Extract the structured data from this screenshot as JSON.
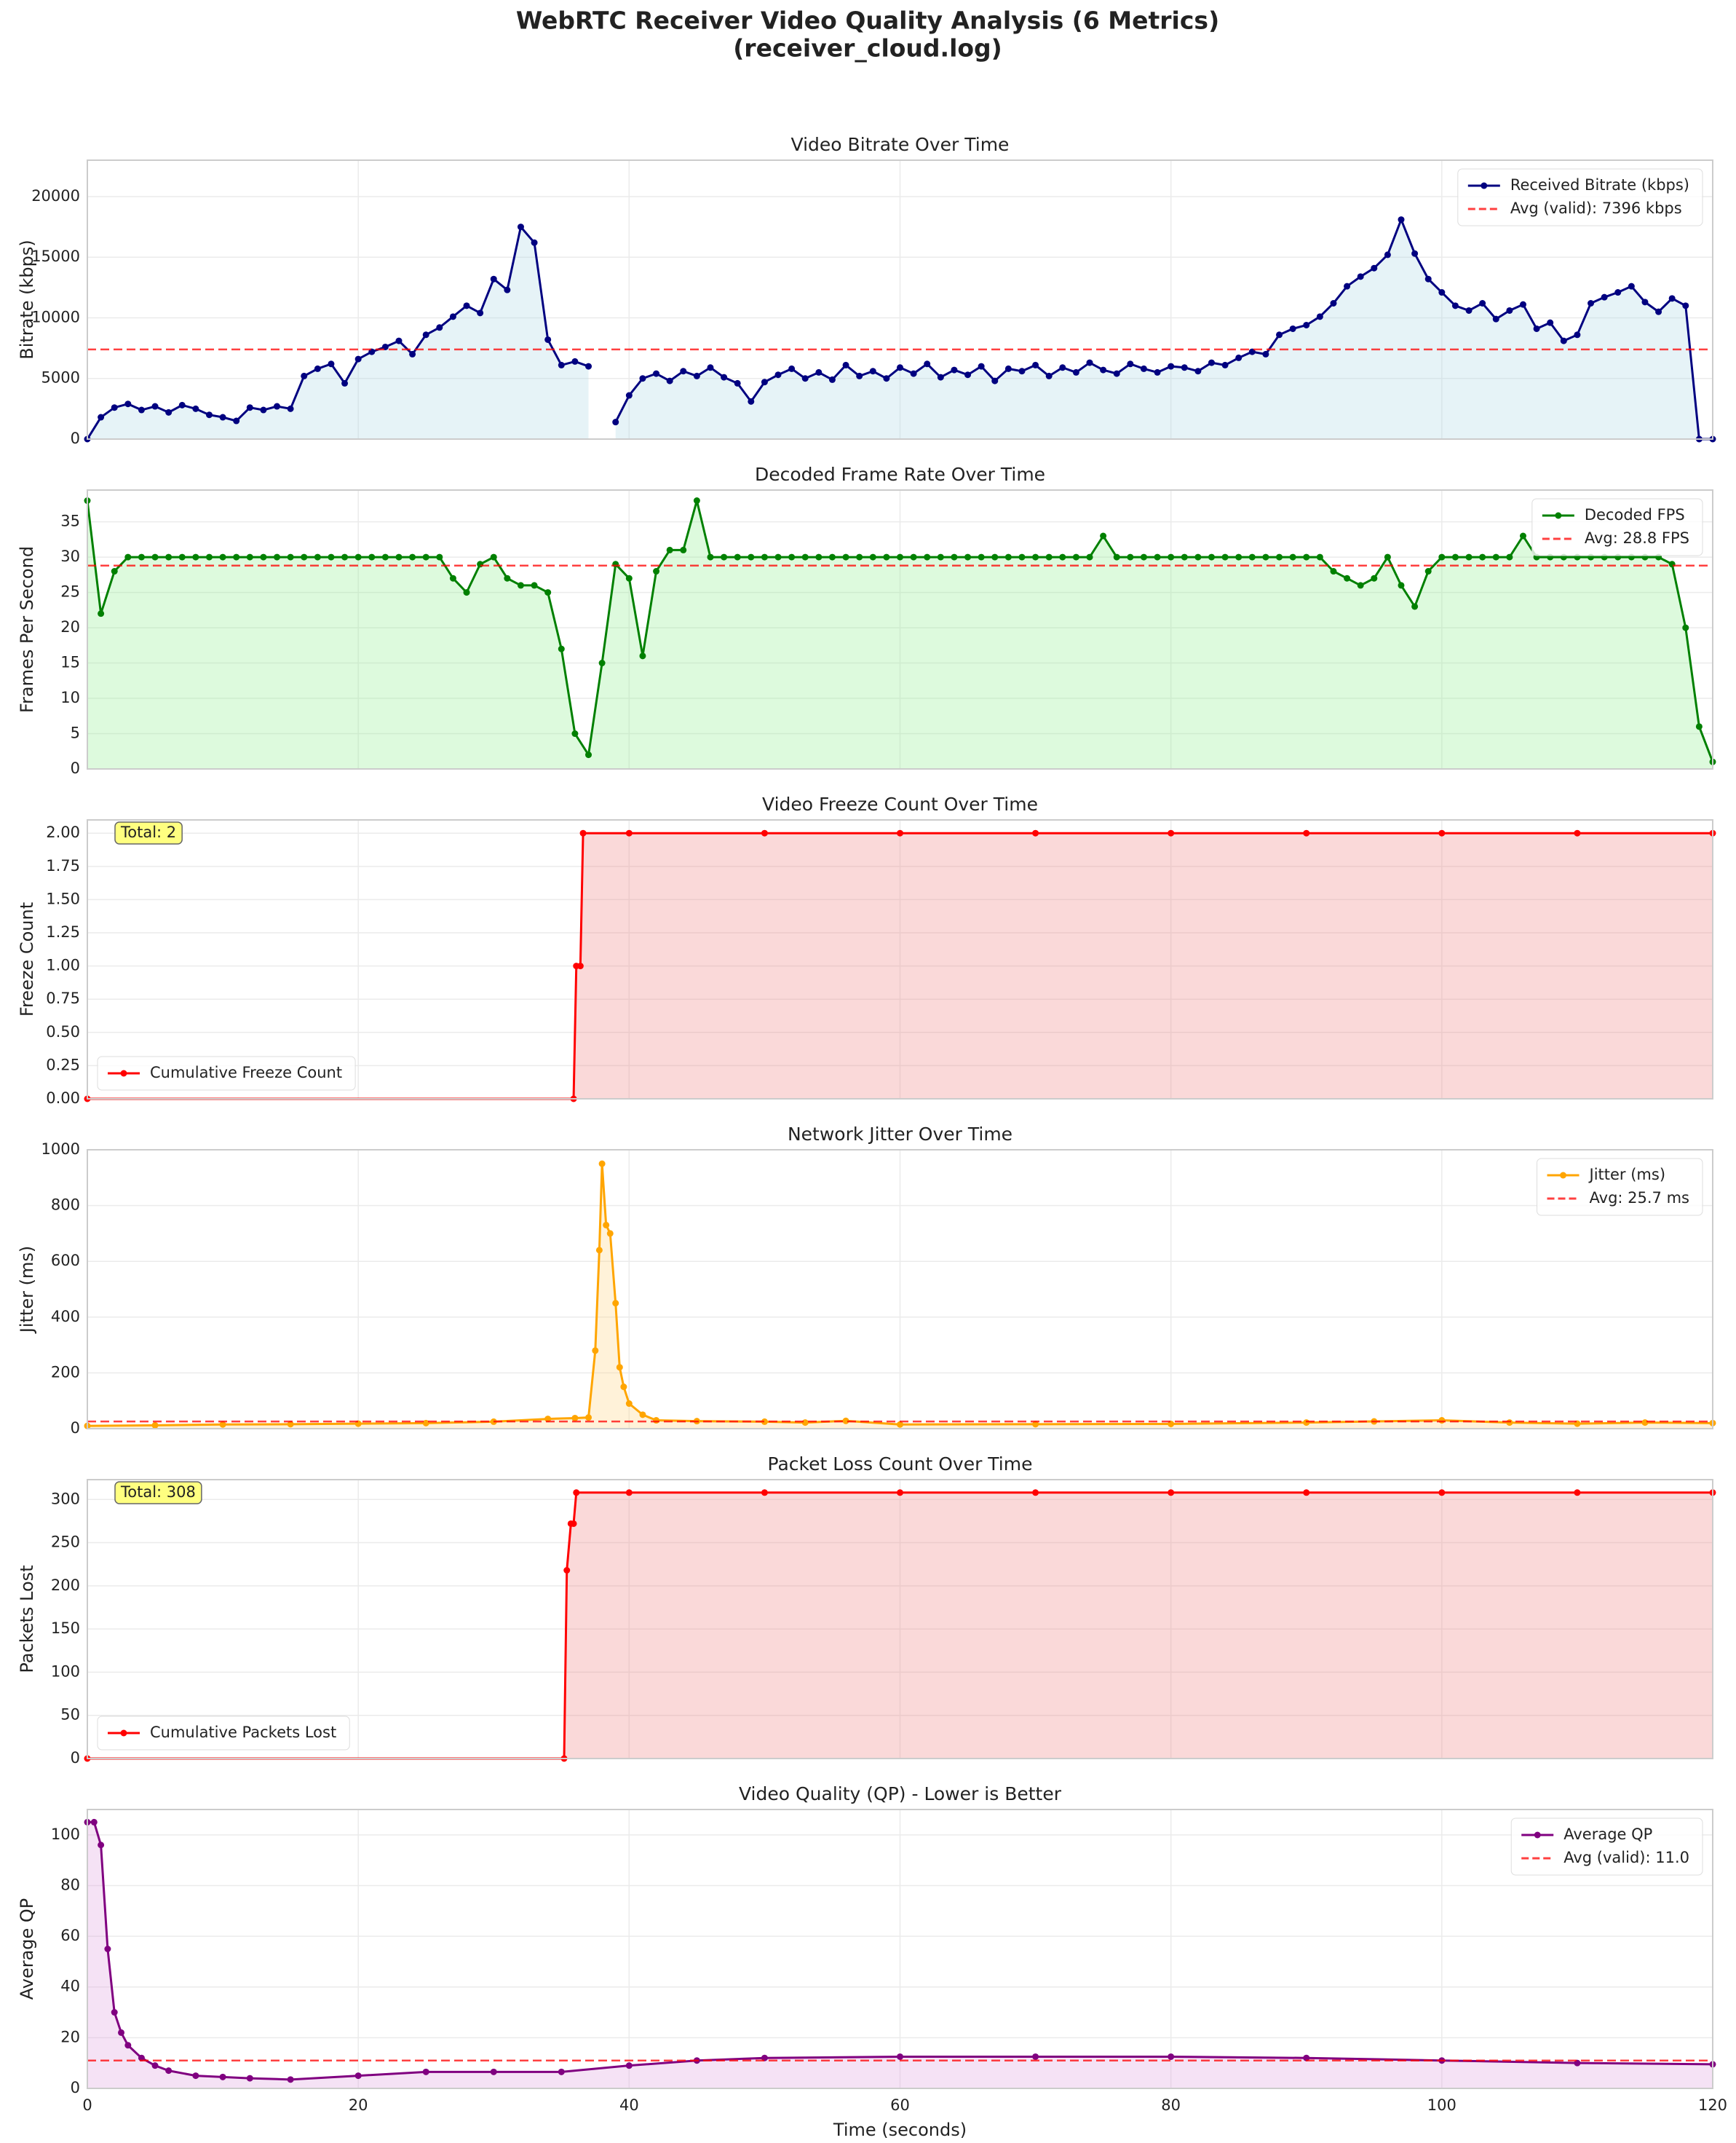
{
  "title": "WebRTC Receiver Video Quality Analysis (6 Metrics)",
  "subtitle": "(receiver_cloud.log)",
  "chart_data": [
    {
      "type": "line",
      "title": "Video Bitrate Over Time",
      "ylabel": "Bitrate (kbps)",
      "grid": true,
      "legend": "upper right",
      "xlim": [
        0,
        120
      ],
      "xticks": [
        0,
        20,
        40,
        60,
        80,
        100,
        120
      ],
      "ylim": [
        0,
        23000
      ],
      "yticks": [
        0,
        5000,
        10000,
        15000,
        20000
      ],
      "fill_color": "#add8e6",
      "x": [
        0,
        1,
        2,
        3,
        4,
        5,
        6,
        7,
        8,
        9,
        10,
        11,
        12,
        13,
        14,
        15,
        16,
        17,
        18,
        19,
        20,
        21,
        22,
        23,
        24,
        25,
        26,
        27,
        28,
        29,
        30,
        31,
        32,
        33,
        34,
        35,
        36,
        37,
        38,
        39,
        40,
        41,
        42,
        43,
        44,
        45,
        46,
        47,
        48,
        49,
        50,
        51,
        52,
        53,
        54,
        55,
        56,
        57,
        58,
        59,
        60,
        61,
        62,
        63,
        64,
        65,
        66,
        67,
        68,
        69,
        70,
        71,
        72,
        73,
        74,
        75,
        76,
        77,
        78,
        79,
        80,
        81,
        82,
        83,
        84,
        85,
        86,
        87,
        88,
        89,
        90,
        91,
        92,
        93,
        94,
        95,
        96,
        97,
        98,
        99,
        100,
        101,
        102,
        103,
        104,
        105,
        106,
        107,
        108,
        109,
        110,
        111,
        112,
        113,
        114,
        115,
        116,
        117,
        118,
        119,
        120
      ],
      "series": [
        {
          "name": "Received Bitrate (kbps)",
          "color": "#000080",
          "values": [
            0,
            1800,
            2600,
            2900,
            2400,
            2700,
            2200,
            2800,
            2500,
            2000,
            1800,
            1500,
            2600,
            2400,
            2700,
            2500,
            5200,
            5800,
            6200,
            4600,
            6600,
            7200,
            7600,
            8100,
            7000,
            8600,
            9200,
            10100,
            11000,
            10400,
            13200,
            12300,
            17500,
            16200,
            8200,
            6100,
            6400,
            6000,
            null,
            1400,
            3600,
            5000,
            5400,
            4800,
            5600,
            5200,
            5900,
            5100,
            4600,
            3100,
            4700,
            5300,
            5800,
            5000,
            5500,
            4900,
            6100,
            5200,
            5600,
            5000,
            5900,
            5400,
            6200,
            5100,
            5700,
            5300,
            6000,
            4800,
            5800,
            5600,
            6100,
            5200,
            5900,
            5500,
            6300,
            5700,
            5400,
            6200,
            5800,
            5500,
            6000,
            5900,
            5600,
            6300,
            6100,
            6700,
            7200,
            7000,
            8600,
            9100,
            9400,
            10100,
            11200,
            12600,
            13400,
            14100,
            15200,
            18100,
            15300,
            13200,
            12100,
            11000,
            10600,
            11200,
            9900,
            10600,
            11100,
            9100,
            9600,
            8100,
            8600,
            11200,
            11700,
            12100,
            12600,
            11300,
            10500,
            11600,
            11000,
            0,
            0
          ]
        }
      ],
      "avg_line": {
        "name": "Avg (valid): 7396 kbps",
        "value": 7396,
        "color": "#ff0000"
      }
    },
    {
      "type": "line",
      "title": "Decoded Frame Rate Over Time",
      "ylabel": "Frames Per Second",
      "grid": true,
      "legend": "upper right",
      "xlim": [
        0,
        120
      ],
      "xticks": [
        0,
        20,
        40,
        60,
        80,
        100,
        120
      ],
      "ylim": [
        0,
        39.5
      ],
      "yticks": [
        0,
        5,
        10,
        15,
        20,
        25,
        30,
        35
      ],
      "fill_color": "#90ee90",
      "x": [
        0,
        1,
        2,
        3,
        4,
        5,
        6,
        7,
        8,
        9,
        10,
        11,
        12,
        13,
        14,
        15,
        16,
        17,
        18,
        19,
        20,
        21,
        22,
        23,
        24,
        25,
        26,
        27,
        28,
        29,
        30,
        31,
        32,
        33,
        34,
        35,
        36,
        37,
        38,
        39,
        40,
        41,
        42,
        43,
        44,
        45,
        46,
        47,
        48,
        49,
        50,
        51,
        52,
        53,
        54,
        55,
        56,
        57,
        58,
        59,
        60,
        61,
        62,
        63,
        64,
        65,
        66,
        67,
        68,
        69,
        70,
        71,
        72,
        73,
        74,
        75,
        76,
        77,
        78,
        79,
        80,
        81,
        82,
        83,
        84,
        85,
        86,
        87,
        88,
        89,
        90,
        91,
        92,
        93,
        94,
        95,
        96,
        97,
        98,
        99,
        100,
        101,
        102,
        103,
        104,
        105,
        106,
        107,
        108,
        109,
        110,
        111,
        112,
        113,
        114,
        115,
        116,
        117,
        118,
        119,
        120
      ],
      "series": [
        {
          "name": "Decoded FPS",
          "color": "#008000",
          "values": [
            38,
            22,
            28,
            30,
            30,
            30,
            30,
            30,
            30,
            30,
            30,
            30,
            30,
            30,
            30,
            30,
            30,
            30,
            30,
            30,
            30,
            30,
            30,
            30,
            30,
            30,
            30,
            27,
            25,
            29,
            30,
            27,
            26,
            26,
            25,
            17,
            5,
            2,
            15,
            29,
            27,
            16,
            28,
            31,
            31,
            38,
            30,
            30,
            30,
            30,
            30,
            30,
            30,
            30,
            30,
            30,
            30,
            30,
            30,
            30,
            30,
            30,
            30,
            30,
            30,
            30,
            30,
            30,
            30,
            30,
            30,
            30,
            30,
            30,
            30,
            33,
            30,
            30,
            30,
            30,
            30,
            30,
            30,
            30,
            30,
            30,
            30,
            30,
            30,
            30,
            30,
            30,
            28,
            27,
            26,
            27,
            30,
            26,
            23,
            28,
            30,
            30,
            30,
            30,
            30,
            30,
            33,
            30,
            30,
            30,
            30,
            30,
            30,
            30,
            30,
            30,
            30,
            29,
            20,
            6,
            1
          ]
        }
      ],
      "avg_line": {
        "name": "Avg: 28.8 FPS",
        "value": 28.8,
        "color": "#ff0000"
      }
    },
    {
      "type": "line",
      "title": "Video Freeze Count Over Time",
      "ylabel": "Freeze Count",
      "grid": true,
      "legend": "lower left",
      "xlim": [
        0,
        120
      ],
      "xticks": [
        0,
        20,
        40,
        60,
        80,
        100,
        120
      ],
      "ylim": [
        0,
        2.1
      ],
      "yticks": [
        {
          "value": 0,
          "label": "0.00"
        },
        {
          "value": 0.25,
          "label": "0.25"
        },
        {
          "value": 0.5,
          "label": "0.50"
        },
        {
          "value": 0.75,
          "label": "0.75"
        },
        {
          "value": 1,
          "label": "1.00"
        },
        {
          "value": 1.25,
          "label": "1.25"
        },
        {
          "value": 1.5,
          "label": "1.50"
        },
        {
          "value": 1.75,
          "label": "1.75"
        },
        {
          "value": 2,
          "label": "2.00"
        }
      ],
      "fill_color": "#f08080",
      "annotation": "Total: 2",
      "x": [
        0,
        35.9,
        36.1,
        36.4,
        36.6,
        40,
        50,
        60,
        70,
        80,
        90,
        100,
        110,
        120
      ],
      "series": [
        {
          "name": "Cumulative Freeze Count",
          "color": "#ff0000",
          "values": [
            0,
            0,
            1,
            1,
            2,
            2,
            2,
            2,
            2,
            2,
            2,
            2,
            2,
            2
          ]
        }
      ]
    },
    {
      "type": "line",
      "title": "Network Jitter Over Time",
      "ylabel": "Jitter (ms)",
      "grid": true,
      "legend": "upper right",
      "xlim": [
        0,
        120
      ],
      "xticks": [
        0,
        20,
        40,
        60,
        80,
        100,
        120
      ],
      "ylim": [
        0,
        1000
      ],
      "yticks": [
        0,
        200,
        400,
        600,
        800,
        1000
      ],
      "fill_color": "#ffd580",
      "x": [
        0,
        5,
        10,
        15,
        20,
        25,
        30,
        34,
        36,
        37,
        37.5,
        37.8,
        38,
        38.3,
        38.6,
        39,
        39.3,
        39.6,
        40,
        41,
        42,
        45,
        50,
        53,
        56,
        60,
        70,
        80,
        90,
        95,
        100,
        105,
        110,
        115,
        120
      ],
      "series": [
        {
          "name": "Jitter (ms)",
          "color": "#ffa500",
          "values": [
            10,
            12,
            15,
            16,
            18,
            20,
            25,
            35,
            38,
            40,
            280,
            640,
            950,
            730,
            700,
            450,
            220,
            150,
            90,
            50,
            30,
            27,
            25,
            22,
            28,
            15,
            16,
            17,
            22,
            26,
            30,
            22,
            18,
            22,
            20
          ]
        }
      ],
      "avg_line": {
        "name": "Avg: 25.7 ms",
        "value": 25.7,
        "color": "#ff0000"
      }
    },
    {
      "type": "line",
      "title": "Packet Loss Count Over Time",
      "ylabel": "Packets Lost",
      "grid": true,
      "legend": "lower left",
      "xlim": [
        0,
        120
      ],
      "xticks": [
        0,
        20,
        40,
        60,
        80,
        100,
        120
      ],
      "ylim": [
        0,
        323
      ],
      "yticks": [
        0,
        50,
        100,
        150,
        200,
        250,
        300
      ],
      "fill_color": "#f08080",
      "annotation": "Total: 308",
      "x": [
        0,
        35.2,
        35.4,
        35.7,
        35.9,
        36.1,
        40,
        50,
        60,
        70,
        80,
        90,
        100,
        110,
        120
      ],
      "series": [
        {
          "name": "Cumulative Packets Lost",
          "color": "#ff0000",
          "values": [
            0,
            0,
            218,
            272,
            272,
            308,
            308,
            308,
            308,
            308,
            308,
            308,
            308,
            308,
            308
          ]
        }
      ]
    },
    {
      "type": "line",
      "title": "Video Quality (QP) - Lower is Better",
      "ylabel": "Average QP",
      "xlabel": "Time (seconds)",
      "grid": true,
      "legend": "upper right",
      "xlim": [
        0,
        120
      ],
      "xticks": [
        0,
        20,
        40,
        60,
        80,
        100,
        120
      ],
      "ylim": [
        0,
        110
      ],
      "yticks": [
        0,
        20,
        40,
        60,
        80,
        100
      ],
      "fill_color": "#dda0dd",
      "x": [
        0,
        0.5,
        1,
        1.5,
        2,
        2.5,
        3,
        4,
        5,
        6,
        8,
        10,
        12,
        15,
        20,
        25,
        30,
        35,
        40,
        45,
        50,
        60,
        70,
        80,
        90,
        100,
        110,
        120
      ],
      "series": [
        {
          "name": "Average QP",
          "color": "#800080",
          "values": [
            105,
            105,
            96,
            55,
            30,
            22,
            17,
            12,
            9,
            7,
            5,
            4.5,
            4,
            3.5,
            5,
            6.5,
            6.5,
            6.5,
            9,
            11,
            12,
            12.5,
            12.5,
            12.5,
            12,
            11,
            10,
            9.5
          ]
        }
      ],
      "avg_line": {
        "name": "Avg (valid): 11.0",
        "value": 11.0,
        "color": "#ff0000"
      }
    }
  ]
}
